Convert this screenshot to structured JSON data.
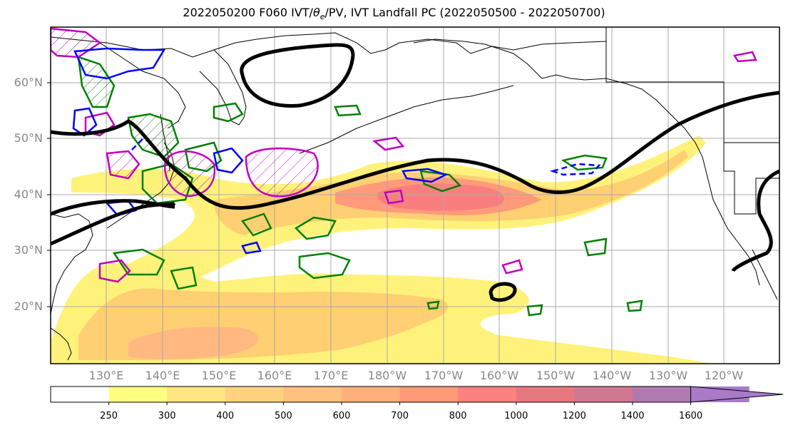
{
  "title": {
    "prefix": "2022050200 F060 IVT/",
    "theta_symbol": "θ",
    "theta_sub": "e",
    "suffix": "/PV, IVT Landfall PC (2022050500 - 2022050700)"
  },
  "lat_labels": [
    "60°N",
    "50°N",
    "40°N",
    "30°N",
    "20°N"
  ],
  "lon_labels": [
    "130°E",
    "140°E",
    "150°E",
    "160°E",
    "170°E",
    "180°W",
    "170°W",
    "160°W",
    "150°W",
    "140°W",
    "130°W",
    "120°W"
  ],
  "colorbar": {
    "ticks": [
      "250",
      "300",
      "400",
      "500",
      "600",
      "700",
      "800",
      "1000",
      "1200",
      "1400",
      "1600"
    ],
    "colors": [
      "#ffffff",
      "#ffff80",
      "#ffe680",
      "#ffd280",
      "#ffc080",
      "#ffb07a",
      "#ff9a78",
      "#ff8080",
      "#e87880",
      "#d07890",
      "#b07ab0",
      "#a87ac8"
    ]
  },
  "style_colors": {
    "ivt_low": "#fff27a",
    "ivt_mid": "#ffcf73",
    "ivt_high": "#ff9a7a",
    "ivt_core": "#f97f7f",
    "pv_contour": "#000000",
    "theta_e_contour": "#008000",
    "blue_contour": "#0000ff",
    "magenta_contour": "#c000c0",
    "grid": "#aaaaaa",
    "coast": "#000000"
  }
}
